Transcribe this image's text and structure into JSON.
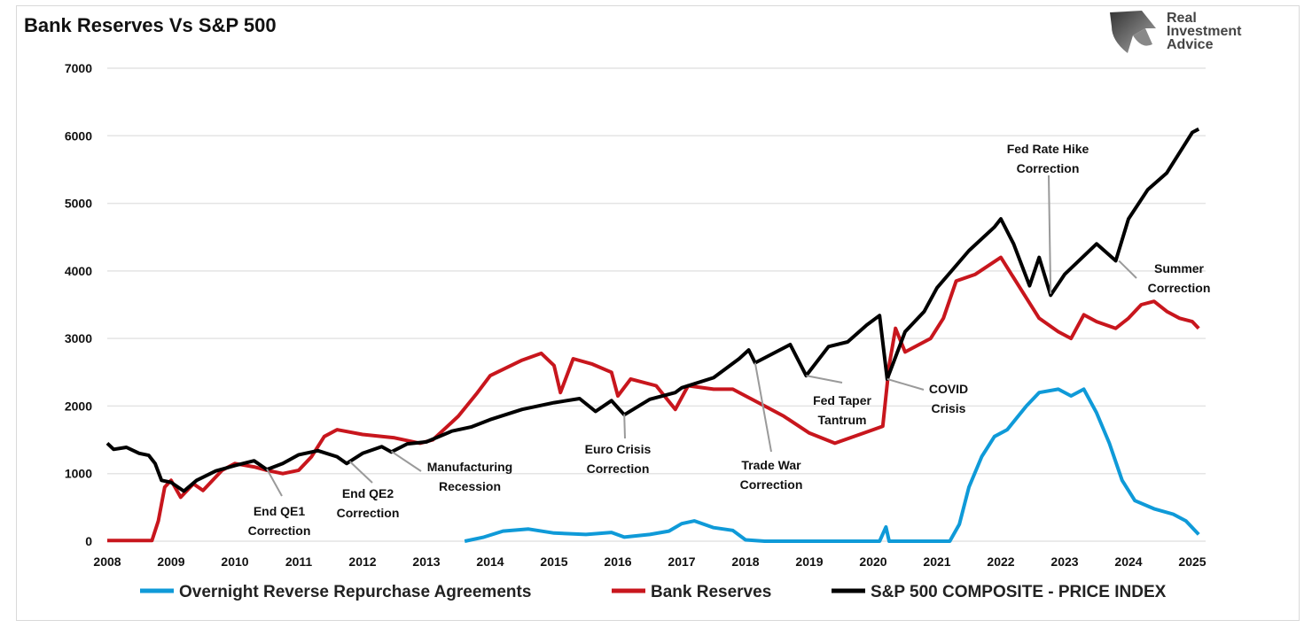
{
  "logo": {
    "lines": [
      "Real",
      "Investment",
      "Advice"
    ]
  },
  "chart_data": {
    "type": "line",
    "title": "Bank Reserves Vs S&P 500",
    "xlabel": "",
    "ylabel": "",
    "xlim": [
      2008,
      2025.2
    ],
    "ylim": [
      0,
      7000
    ],
    "x_ticks": [
      "2008",
      "2009",
      "2010",
      "2011",
      "2012",
      "2013",
      "2014",
      "2015",
      "2016",
      "2017",
      "2018",
      "2019",
      "2020",
      "2021",
      "2022",
      "2023",
      "2024",
      "2025"
    ],
    "y_ticks": [
      "0",
      "1000",
      "2000",
      "3000",
      "4000",
      "5000",
      "6000",
      "7000"
    ],
    "grid": "horizontal",
    "legend_placement": "bottom",
    "series": [
      {
        "name": "Overnight Reverse Repurchase Agreements",
        "color": "#0f9ad8",
        "points": [
          [
            2013.6,
            0
          ],
          [
            2013.9,
            60
          ],
          [
            2014.2,
            150
          ],
          [
            2014.6,
            180
          ],
          [
            2015.0,
            120
          ],
          [
            2015.5,
            100
          ],
          [
            2015.9,
            130
          ],
          [
            2016.1,
            60
          ],
          [
            2016.5,
            100
          ],
          [
            2016.8,
            150
          ],
          [
            2017.0,
            260
          ],
          [
            2017.2,
            300
          ],
          [
            2017.5,
            200
          ],
          [
            2017.8,
            160
          ],
          [
            2018.0,
            20
          ],
          [
            2018.3,
            0
          ],
          [
            2020.1,
            0
          ],
          [
            2020.2,
            210
          ],
          [
            2020.25,
            0
          ],
          [
            2021.2,
            0
          ],
          [
            2021.35,
            250
          ],
          [
            2021.5,
            800
          ],
          [
            2021.7,
            1250
          ],
          [
            2021.9,
            1550
          ],
          [
            2022.1,
            1650
          ],
          [
            2022.4,
            2000
          ],
          [
            2022.6,
            2200
          ],
          [
            2022.9,
            2250
          ],
          [
            2023.1,
            2150
          ],
          [
            2023.3,
            2250
          ],
          [
            2023.5,
            1900
          ],
          [
            2023.7,
            1450
          ],
          [
            2023.9,
            900
          ],
          [
            2024.1,
            600
          ],
          [
            2024.4,
            480
          ],
          [
            2024.7,
            400
          ],
          [
            2024.9,
            300
          ],
          [
            2025.1,
            100
          ]
        ]
      },
      {
        "name": "Bank Reserves",
        "color": "#c8161d",
        "points": [
          [
            2008.0,
            10
          ],
          [
            2008.7,
            10
          ],
          [
            2008.8,
            300
          ],
          [
            2008.9,
            800
          ],
          [
            2009.0,
            900
          ],
          [
            2009.15,
            650
          ],
          [
            2009.35,
            850
          ],
          [
            2009.5,
            750
          ],
          [
            2009.8,
            1050
          ],
          [
            2010.0,
            1150
          ],
          [
            2010.3,
            1100
          ],
          [
            2010.5,
            1050
          ],
          [
            2010.75,
            1000
          ],
          [
            2011.0,
            1050
          ],
          [
            2011.2,
            1250
          ],
          [
            2011.4,
            1550
          ],
          [
            2011.6,
            1650
          ],
          [
            2012.0,
            1580
          ],
          [
            2012.5,
            1530
          ],
          [
            2012.9,
            1450
          ],
          [
            2013.1,
            1500
          ],
          [
            2013.5,
            1850
          ],
          [
            2013.8,
            2200
          ],
          [
            2014.0,
            2450
          ],
          [
            2014.5,
            2680
          ],
          [
            2014.8,
            2780
          ],
          [
            2015.0,
            2600
          ],
          [
            2015.1,
            2200
          ],
          [
            2015.3,
            2700
          ],
          [
            2015.6,
            2620
          ],
          [
            2015.9,
            2500
          ],
          [
            2016.0,
            2150
          ],
          [
            2016.2,
            2400
          ],
          [
            2016.6,
            2300
          ],
          [
            2016.9,
            1950
          ],
          [
            2017.1,
            2300
          ],
          [
            2017.5,
            2250
          ],
          [
            2017.8,
            2250
          ],
          [
            2018.0,
            2150
          ],
          [
            2018.3,
            2000
          ],
          [
            2018.6,
            1850
          ],
          [
            2019.0,
            1600
          ],
          [
            2019.4,
            1450
          ],
          [
            2019.7,
            1550
          ],
          [
            2020.0,
            1650
          ],
          [
            2020.15,
            1700
          ],
          [
            2020.25,
            2600
          ],
          [
            2020.35,
            3150
          ],
          [
            2020.5,
            2800
          ],
          [
            2020.9,
            3000
          ],
          [
            2021.1,
            3300
          ],
          [
            2021.3,
            3850
          ],
          [
            2021.6,
            3950
          ],
          [
            2022.0,
            4200
          ],
          [
            2022.2,
            3900
          ],
          [
            2022.4,
            3600
          ],
          [
            2022.6,
            3300
          ],
          [
            2022.9,
            3100
          ],
          [
            2023.1,
            3000
          ],
          [
            2023.3,
            3350
          ],
          [
            2023.5,
            3250
          ],
          [
            2023.8,
            3150
          ],
          [
            2024.0,
            3300
          ],
          [
            2024.2,
            3500
          ],
          [
            2024.4,
            3550
          ],
          [
            2024.6,
            3400
          ],
          [
            2024.8,
            3300
          ],
          [
            2025.0,
            3250
          ],
          [
            2025.1,
            3150
          ]
        ]
      },
      {
        "name": "S&P 500 COMPOSITE - PRICE INDEX",
        "color": "#000000",
        "points": [
          [
            2008.0,
            1450
          ],
          [
            2008.1,
            1360
          ],
          [
            2008.3,
            1390
          ],
          [
            2008.5,
            1300
          ],
          [
            2008.65,
            1270
          ],
          [
            2008.75,
            1150
          ],
          [
            2008.85,
            900
          ],
          [
            2009.0,
            870
          ],
          [
            2009.2,
            740
          ],
          [
            2009.4,
            900
          ],
          [
            2009.7,
            1040
          ],
          [
            2010.0,
            1120
          ],
          [
            2010.3,
            1190
          ],
          [
            2010.5,
            1060
          ],
          [
            2010.75,
            1150
          ],
          [
            2011.0,
            1280
          ],
          [
            2011.3,
            1340
          ],
          [
            2011.6,
            1250
          ],
          [
            2011.75,
            1150
          ],
          [
            2012.0,
            1300
          ],
          [
            2012.3,
            1400
          ],
          [
            2012.45,
            1320
          ],
          [
            2012.7,
            1440
          ],
          [
            2013.0,
            1470
          ],
          [
            2013.4,
            1630
          ],
          [
            2013.7,
            1690
          ],
          [
            2014.0,
            1800
          ],
          [
            2014.5,
            1950
          ],
          [
            2015.0,
            2050
          ],
          [
            2015.4,
            2110
          ],
          [
            2015.65,
            1920
          ],
          [
            2015.9,
            2080
          ],
          [
            2016.1,
            1870
          ],
          [
            2016.5,
            2100
          ],
          [
            2016.9,
            2200
          ],
          [
            2017.0,
            2270
          ],
          [
            2017.5,
            2420
          ],
          [
            2017.9,
            2700
          ],
          [
            2018.05,
            2830
          ],
          [
            2018.15,
            2640
          ],
          [
            2018.7,
            2910
          ],
          [
            2018.95,
            2450
          ],
          [
            2019.3,
            2880
          ],
          [
            2019.6,
            2950
          ],
          [
            2019.9,
            3200
          ],
          [
            2020.1,
            3340
          ],
          [
            2020.22,
            2400
          ],
          [
            2020.5,
            3100
          ],
          [
            2020.8,
            3400
          ],
          [
            2021.0,
            3750
          ],
          [
            2021.5,
            4300
          ],
          [
            2021.9,
            4650
          ],
          [
            2022.0,
            4770
          ],
          [
            2022.2,
            4400
          ],
          [
            2022.45,
            3780
          ],
          [
            2022.6,
            4200
          ],
          [
            2022.78,
            3640
          ],
          [
            2023.0,
            3950
          ],
          [
            2023.5,
            4400
          ],
          [
            2023.8,
            4150
          ],
          [
            2024.0,
            4770
          ],
          [
            2024.3,
            5200
          ],
          [
            2024.6,
            5450
          ],
          [
            2024.9,
            5900
          ],
          [
            2025.0,
            6050
          ],
          [
            2025.1,
            6100
          ]
        ]
      }
    ],
    "annotations": [
      {
        "lines": [
          "End QE1",
          "Correction"
        ],
        "target": [
          2010.5,
          1070
        ]
      },
      {
        "lines": [
          "End QE2",
          "Correction"
        ],
        "target": [
          2011.8,
          1180
        ]
      },
      {
        "lines": [
          "Manufacturing",
          "Recession"
        ],
        "target": [
          2012.45,
          1330
        ]
      },
      {
        "lines": [
          "Euro Crisis",
          "Correction"
        ],
        "target": [
          2016.1,
          1880
        ]
      },
      {
        "lines": [
          "Trade War",
          "Correction"
        ],
        "target": [
          2018.15,
          2640
        ]
      },
      {
        "lines": [
          "Fed Taper",
          "Tantrum"
        ],
        "target": [
          2018.95,
          2450
        ]
      },
      {
        "lines": [
          "COVID",
          "Crisis"
        ],
        "target": [
          2020.22,
          2400
        ]
      },
      {
        "lines": [
          "Fed Rate Hike",
          "Correction"
        ],
        "target": [
          2022.78,
          3660
        ]
      },
      {
        "lines": [
          "Summer",
          "Correction"
        ],
        "target": [
          2023.85,
          4150
        ]
      }
    ]
  }
}
